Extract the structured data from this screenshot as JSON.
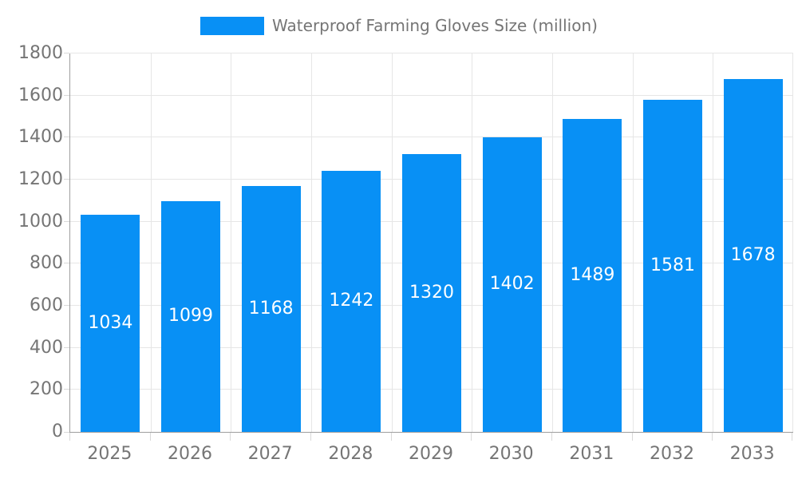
{
  "chart_data": {
    "type": "bar",
    "title": "Waterproof Farming Gloves Size (million)",
    "legend": "Waterproof Farming Gloves Size (million)",
    "legend_position": "top-center",
    "categories": [
      "2025",
      "2026",
      "2027",
      "2028",
      "2029",
      "2030",
      "2031",
      "2032",
      "2033"
    ],
    "series": [
      {
        "name": "Waterproof Farming Gloves Size (million)",
        "values": [
          1034,
          1099,
          1168,
          1242,
          1320,
          1402,
          1489,
          1581,
          1678
        ]
      }
    ],
    "value_labels_shown": true,
    "xlabel": "",
    "ylabel": "",
    "ylim": [
      0,
      1800
    ],
    "yticks": [
      0,
      200,
      400,
      600,
      800,
      1000,
      1200,
      1400,
      1600,
      1800
    ],
    "grid": true
  },
  "colors": {
    "bar": "#0890F5",
    "grid": "#e6e6e6",
    "axis": "#9e9e9e",
    "tick": "#d9d9d9",
    "text": "#757575",
    "value_label": "#ffffff",
    "background": "#ffffff"
  }
}
